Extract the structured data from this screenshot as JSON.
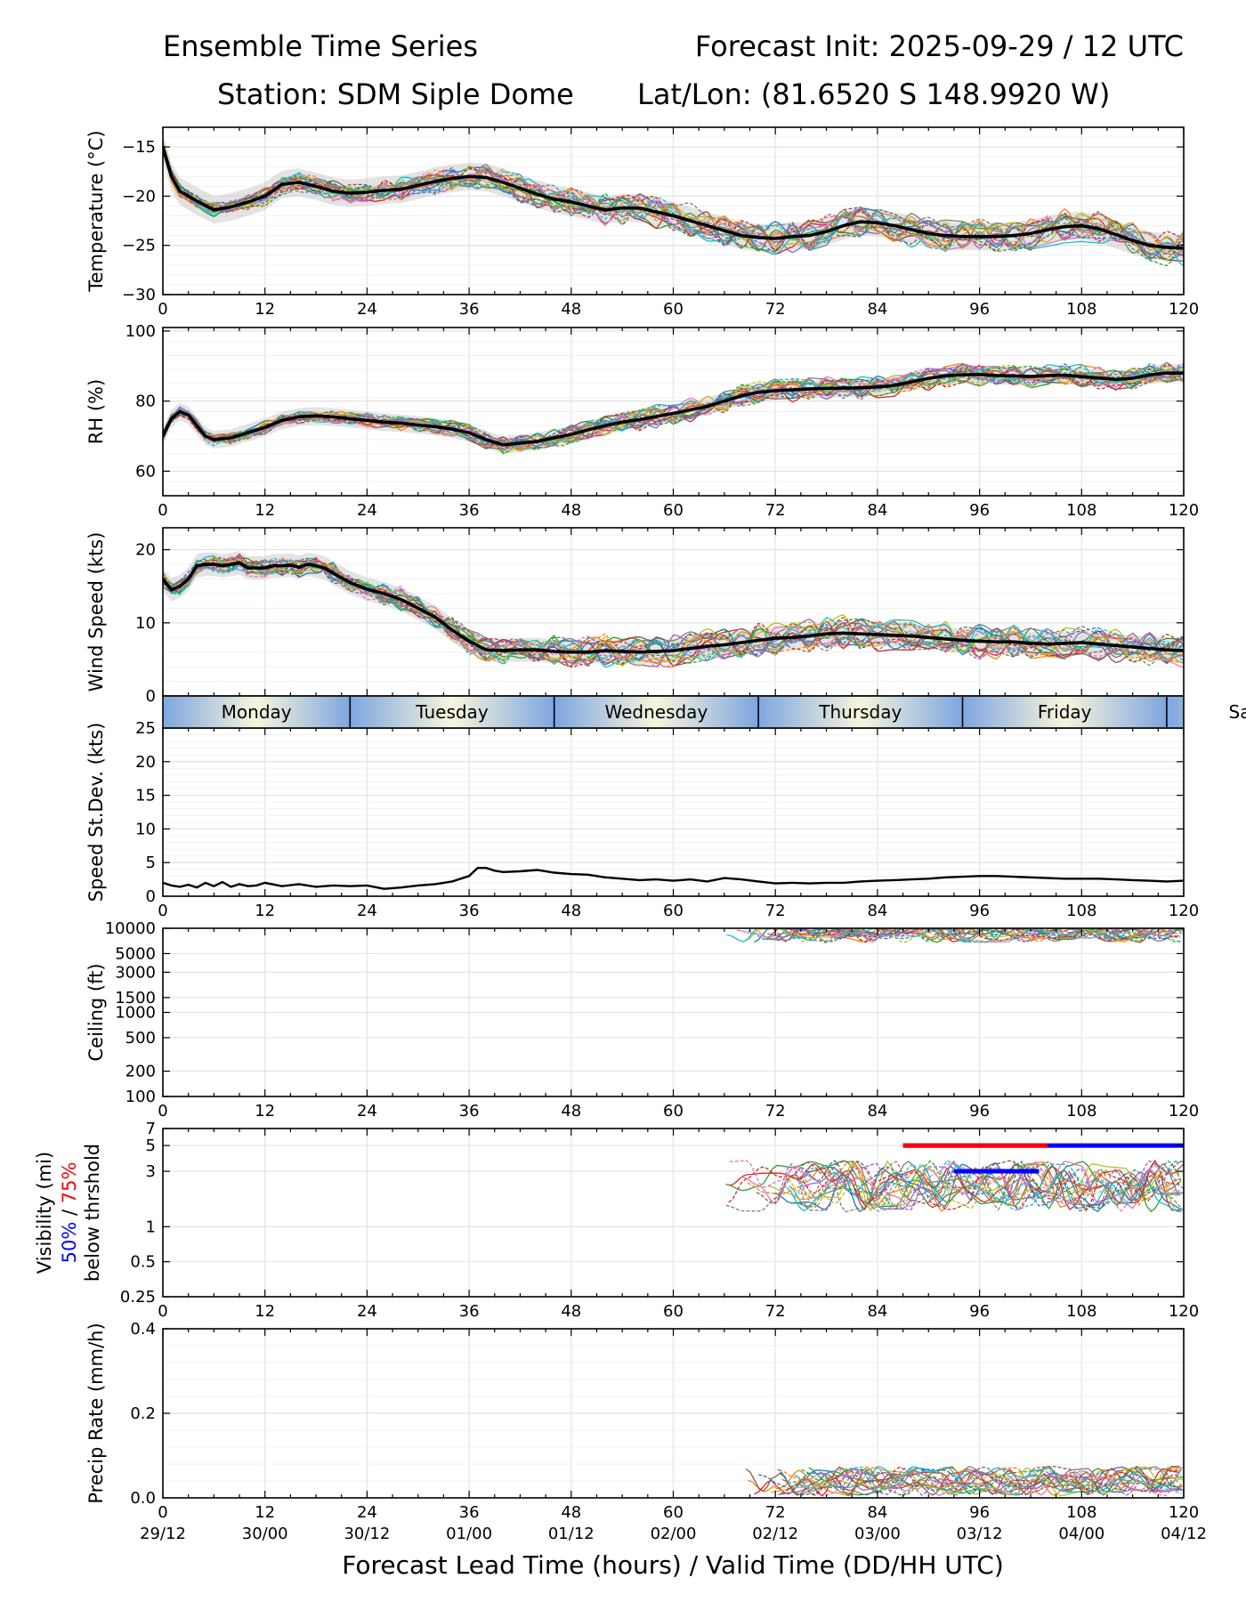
{
  "header": {
    "title_left": "Ensemble Time Series",
    "title_right": "Forecast Init: 2025-09-29 / 12 UTC",
    "station": "Station: SDM  Siple Dome",
    "latlon": "Lat/Lon: (81.6520 S 148.9920 W)"
  },
  "x_axis": {
    "label": "Forecast Lead Time (hours) / Valid Time (DD/HH UTC)",
    "lead_ticks": [
      0,
      12,
      24,
      36,
      48,
      60,
      72,
      84,
      96,
      108,
      120
    ],
    "lead_tick_labels": [
      "0",
      "12",
      "24",
      "36",
      "48",
      "60",
      "72",
      "84",
      "96",
      "108",
      "120"
    ],
    "valid_time_labels": [
      "29/12",
      "30/00",
      "30/12",
      "01/00",
      "01/12",
      "02/00",
      "02/12",
      "03/00",
      "03/12",
      "04/00",
      "04/12"
    ],
    "range": [
      0,
      120
    ]
  },
  "day_strip": {
    "days": [
      {
        "name": "Monday",
        "start": 0,
        "end": 22
      },
      {
        "name": "Tuesday",
        "start": 22,
        "end": 46
      },
      {
        "name": "Wednesday",
        "start": 46,
        "end": 70
      },
      {
        "name": "Thursday",
        "start": 70,
        "end": 94
      },
      {
        "name": "Friday",
        "start": 94,
        "end": 118
      },
      {
        "name": "Saturday",
        "start": 118,
        "end": 142
      }
    ],
    "edge_color": "#7ea6e0",
    "mid_color": "#f8f5dc"
  },
  "chart_data": [
    {
      "id": "temperature",
      "type": "line",
      "ylabel": "Temperature (°C)",
      "ylim": [
        -30,
        -13
      ],
      "yticks": [
        -30,
        -25,
        -20,
        -15
      ],
      "ytick_labels": [
        "−30",
        "−25",
        "−20",
        "−15"
      ],
      "mean": {
        "x": [
          0,
          1,
          2,
          4,
          6,
          8,
          10,
          12,
          14,
          16,
          18,
          20,
          22,
          24,
          26,
          28,
          30,
          32,
          34,
          36,
          38,
          40,
          42,
          44,
          46,
          48,
          50,
          52,
          54,
          56,
          58,
          60,
          62,
          64,
          66,
          68,
          70,
          72,
          74,
          76,
          78,
          80,
          82,
          84,
          86,
          88,
          90,
          92,
          94,
          96,
          98,
          100,
          102,
          104,
          106,
          108,
          110,
          112,
          114,
          116,
          118,
          120
        ],
        "y": [
          -15,
          -18,
          -19.5,
          -20.5,
          -21.4,
          -21.1,
          -20.6,
          -20,
          -18.8,
          -18.6,
          -19,
          -19.5,
          -19.7,
          -19.6,
          -19.4,
          -19.3,
          -18.9,
          -18.5,
          -18.2,
          -18,
          -18.1,
          -18.6,
          -19.2,
          -19.8,
          -20.3,
          -20.6,
          -21,
          -21.4,
          -21.2,
          -21.2,
          -21.6,
          -22,
          -22.5,
          -23,
          -23.5,
          -24,
          -24.2,
          -24.3,
          -24.1,
          -24,
          -23.6,
          -23,
          -22.6,
          -22.7,
          -23,
          -23.4,
          -23.8,
          -24,
          -24.1,
          -24.1,
          -24.1,
          -24,
          -23.8,
          -23.4,
          -23.1,
          -23,
          -23.3,
          -23.9,
          -24.5,
          -25,
          -25.2,
          -25.3
        ]
      },
      "spread": 1.4,
      "member_noise": 1.6,
      "members": 20
    },
    {
      "id": "rh",
      "type": "line",
      "ylabel": "RH (%)",
      "ylim": [
        53,
        101
      ],
      "yticks": [
        60,
        80,
        100
      ],
      "ytick_labels": [
        "60",
        "80",
        "100"
      ],
      "mean": {
        "x": [
          0,
          1,
          2,
          3,
          4,
          5,
          6,
          8,
          10,
          12,
          14,
          16,
          18,
          20,
          22,
          24,
          26,
          28,
          30,
          32,
          34,
          36,
          38,
          40,
          42,
          44,
          46,
          48,
          50,
          52,
          54,
          56,
          58,
          60,
          62,
          64,
          66,
          68,
          70,
          72,
          74,
          76,
          78,
          80,
          82,
          84,
          86,
          88,
          90,
          92,
          94,
          96,
          98,
          100,
          102,
          104,
          106,
          108,
          110,
          112,
          114,
          116,
          118,
          120
        ],
        "y": [
          70,
          75,
          77,
          76,
          73,
          70,
          69,
          69.5,
          71,
          72.5,
          74.5,
          75.5,
          75.8,
          75.5,
          75,
          74.5,
          74,
          73.7,
          73.2,
          72.7,
          72,
          71,
          69,
          67.5,
          68,
          68.5,
          69.5,
          70.5,
          71.8,
          73,
          74,
          74.7,
          75.6,
          76.5,
          77.5,
          78.5,
          80,
          81.5,
          82.5,
          83,
          83.2,
          83.5,
          83.6,
          83.7,
          83.8,
          84,
          84.5,
          85.5,
          86.5,
          87.2,
          87.5,
          87.6,
          87.3,
          87.2,
          87,
          87.3,
          87.4,
          87,
          86.6,
          86.2,
          86.5,
          87.5,
          88,
          88
        ]
      },
      "spread": 2.5,
      "member_noise": 3,
      "members": 20
    },
    {
      "id": "wind",
      "type": "line",
      "ylabel": "Wind Speed (kts)",
      "ylim": [
        0,
        23
      ],
      "yticks": [
        0,
        10,
        20
      ],
      "ytick_labels": [
        "0",
        "10",
        "20"
      ],
      "mean": {
        "x": [
          0,
          1,
          2,
          3,
          4,
          5,
          6,
          7,
          8,
          9,
          10,
          11,
          12,
          13,
          14,
          15,
          16,
          17,
          18,
          19,
          20,
          22,
          24,
          26,
          28,
          30,
          32,
          34,
          36,
          38,
          40,
          42,
          44,
          46,
          48,
          50,
          52,
          54,
          56,
          58,
          60,
          62,
          64,
          66,
          68,
          70,
          72,
          74,
          76,
          78,
          80,
          82,
          84,
          86,
          88,
          90,
          92,
          94,
          96,
          98,
          100,
          102,
          104,
          106,
          108,
          110,
          112,
          114,
          116,
          118,
          120
        ],
        "y": [
          16,
          14.5,
          15,
          16,
          17.8,
          18,
          18,
          17.8,
          18,
          18.2,
          17.5,
          17.5,
          17.5,
          17.8,
          17.8,
          17.9,
          17.6,
          18,
          17.8,
          17.5,
          16.8,
          15.5,
          14.6,
          14,
          13.2,
          12,
          10.8,
          9,
          7.5,
          6.3,
          6.2,
          6.3,
          6.3,
          6.1,
          6,
          6,
          6.2,
          6.1,
          6,
          6.1,
          6.2,
          6.5,
          6.8,
          7,
          7.3,
          7.6,
          7.9,
          8,
          8.2,
          8.5,
          8.6,
          8.5,
          8.4,
          8.3,
          8.2,
          8,
          7.8,
          7.6,
          7.5,
          7.4,
          7.4,
          7.2,
          7.1,
          7.2,
          7.3,
          7.1,
          6.9,
          6.7,
          6.5,
          6.3,
          6.2
        ]
      },
      "spread": 1.6,
      "member_noise": 2.2,
      "members": 20
    },
    {
      "id": "speed_stdev",
      "type": "line",
      "ylabel": "Speed St.Dev. (kts)",
      "ylim": [
        0,
        25
      ],
      "yticks": [
        0,
        5,
        10,
        15,
        20,
        25
      ],
      "ytick_labels": [
        "0",
        "5",
        "10",
        "15",
        "20",
        "25"
      ],
      "series": {
        "x": [
          0,
          1,
          2,
          3,
          4,
          5,
          6,
          7,
          8,
          9,
          10,
          11,
          12,
          14,
          16,
          18,
          20,
          22,
          24,
          26,
          28,
          30,
          32,
          34,
          36,
          37,
          38,
          39,
          40,
          42,
          44,
          46,
          48,
          50,
          52,
          54,
          56,
          58,
          60,
          62,
          64,
          66,
          68,
          70,
          72,
          74,
          76,
          78,
          80,
          82,
          84,
          86,
          88,
          90,
          92,
          94,
          96,
          98,
          100,
          102,
          104,
          106,
          108,
          110,
          112,
          114,
          116,
          118,
          120
        ],
        "y": [
          2,
          1.6,
          1.4,
          1.7,
          1.3,
          2,
          1.5,
          2.1,
          1.4,
          1.8,
          1.5,
          1.6,
          2,
          1.5,
          1.8,
          1.4,
          1.6,
          1.5,
          1.6,
          1.1,
          1.3,
          1.6,
          1.8,
          2.2,
          3,
          4.2,
          4.2,
          3.8,
          3.6,
          3.7,
          3.9,
          3.5,
          3.3,
          3.2,
          2.8,
          2.6,
          2.4,
          2.5,
          2.3,
          2.5,
          2.2,
          2.7,
          2.5,
          2.2,
          1.9,
          2,
          1.9,
          2,
          2,
          2.2,
          2.3,
          2.4,
          2.5,
          2.6,
          2.8,
          2.9,
          3,
          3,
          2.9,
          2.8,
          2.7,
          2.6,
          2.6,
          2.6,
          2.5,
          2.4,
          2.3,
          2.2,
          2.3
        ]
      }
    },
    {
      "id": "ceiling",
      "type": "line",
      "yscale": "log",
      "ylabel": "Ceiling (ft)",
      "ylim": [
        100,
        10000
      ],
      "yticks": [
        100,
        200,
        500,
        1000,
        1500,
        3000,
        5000,
        10000
      ],
      "ytick_labels": [
        "100",
        "200",
        "500",
        "1000",
        "1500",
        "3000",
        "5000",
        "10000"
      ],
      "active_from": 66
    },
    {
      "id": "visibility",
      "type": "line",
      "yscale": "log",
      "ylabel_line1": "Visibility (mi)",
      "ylabel_line2_blue": "50%",
      "ylabel_line2_sep": " / ",
      "ylabel_line2_red": "75%",
      "ylabel_line3": "below thrshold",
      "ylim": [
        0.25,
        7
      ],
      "yticks": [
        0.25,
        0.5,
        1,
        3,
        5,
        7
      ],
      "ytick_labels": [
        "0.25",
        "0.5",
        "1",
        "3",
        "5",
        "7"
      ],
      "active_from": 66,
      "threshold_bars": [
        {
          "level": 5,
          "start": 87,
          "end": 120,
          "color": "blue",
          "label": "50%"
        },
        {
          "level": 5,
          "start": 87,
          "end": 104,
          "color": "red",
          "label": "75%"
        },
        {
          "level": 3,
          "start": 93,
          "end": 103,
          "color": "blue",
          "label": "50%"
        }
      ]
    },
    {
      "id": "precip",
      "type": "line",
      "ylabel": "Precip Rate (mm/h)",
      "ylim": [
        0,
        0.4
      ],
      "yticks": [
        0.0,
        0.2,
        0.4
      ],
      "ytick_labels": [
        "0.0",
        "0.2",
        "0.4"
      ],
      "active_from": 68
    }
  ],
  "colors": {
    "members": [
      "#1f77b4",
      "#ff7f0e",
      "#2ca02c",
      "#d62728",
      "#9467bd",
      "#8c564b",
      "#e377c2",
      "#7f7f7f",
      "#bcbd22",
      "#17becf"
    ],
    "mean": "#000000",
    "spread_fill": "#cccccc",
    "grid": "#e4e4e4",
    "blue_label": "#0000ff",
    "red_label": "#ff0000"
  }
}
